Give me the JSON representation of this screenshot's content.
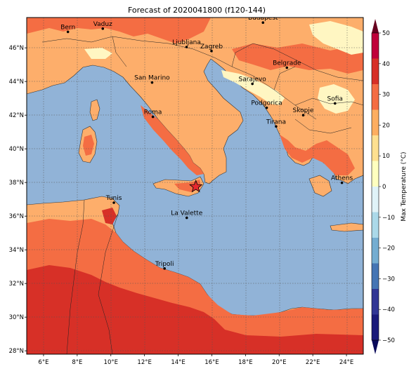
{
  "map": {
    "title": "Forecast of 2020041800 (f120-144)",
    "lon_ticks": [
      "6°E",
      "8°E",
      "10°E",
      "12°E",
      "14°E",
      "16°E",
      "18°E",
      "20°E",
      "22°E",
      "24°E"
    ],
    "lat_ticks": [
      "28°N",
      "30°N",
      "32°N",
      "34°N",
      "36°N",
      "38°N",
      "40°N",
      "42°N",
      "44°N",
      "46°N"
    ],
    "lon_range": [
      5,
      25
    ],
    "lat_range": [
      27.8,
      47.8
    ],
    "grid": true,
    "cities": [
      {
        "name": "Bern",
        "lon": 7.45,
        "lat": 46.95
      },
      {
        "name": "Vaduz",
        "lon": 9.52,
        "lat": 47.14
      },
      {
        "name": "Budapest",
        "lon": 19.04,
        "lat": 47.5
      },
      {
        "name": "Ljubljana",
        "lon": 14.5,
        "lat": 46.05
      },
      {
        "name": "Zagreb",
        "lon": 15.98,
        "lat": 45.81
      },
      {
        "name": "Belgrade",
        "lon": 20.46,
        "lat": 44.82
      },
      {
        "name": "San Marino",
        "lon": 12.45,
        "lat": 43.94
      },
      {
        "name": "Sarajevo",
        "lon": 18.41,
        "lat": 43.86
      },
      {
        "name": "Sofia",
        "lon": 23.32,
        "lat": 42.7
      },
      {
        "name": "Podgorica",
        "lon": 19.26,
        "lat": 42.44
      },
      {
        "name": "Skopje",
        "lon": 21.43,
        "lat": 42.0
      },
      {
        "name": "Roma",
        "lon": 12.5,
        "lat": 41.9
      },
      {
        "name": "Tirana",
        "lon": 19.82,
        "lat": 41.33
      },
      {
        "name": "Athens",
        "lon": 23.73,
        "lat": 37.98
      },
      {
        "name": "Tunis",
        "lon": 10.18,
        "lat": 36.8
      },
      {
        "name": "La Valette",
        "lon": 14.51,
        "lat": 35.9
      },
      {
        "name": "Tripoli",
        "lon": 13.19,
        "lat": 32.89
      }
    ],
    "marker": {
      "symbol": "star",
      "lon": 15.05,
      "lat": 37.75,
      "color": "#e8282e"
    },
    "colors": {
      "sea": "#91b3d7",
      "land_10_20": "#fdae6b",
      "land_20_30": "#f46d43",
      "land_30_40": "#d73027",
      "land_0_10": "#fff6c2"
    }
  },
  "colorbar": {
    "label": "Max Temperature (°C)",
    "ticks": [
      "50",
      "40",
      "30",
      "20",
      "10",
      "0",
      "−10",
      "−20",
      "−30",
      "−40",
      "−50"
    ],
    "bands": [
      "#c0003a",
      "#d73027",
      "#f46d43",
      "#fdae61",
      "#fee090",
      "#ffffbf",
      "#e0f3f8",
      "#abd9e9",
      "#74add1",
      "#4575b4",
      "#313695",
      "#1a1a7a"
    ],
    "extend_top": "#67001f",
    "extend_bottom": "#0a0a5a"
  }
}
